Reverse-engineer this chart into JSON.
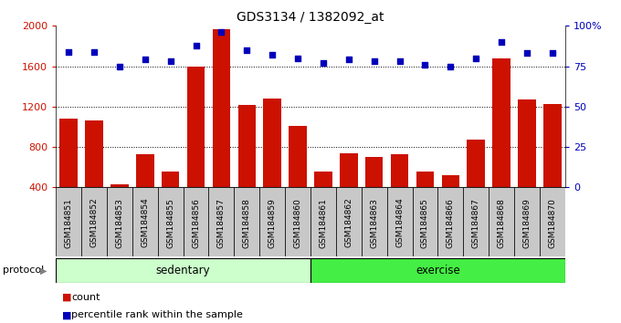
{
  "title": "GDS3134 / 1382092_at",
  "samples": [
    "GSM184851",
    "GSM184852",
    "GSM184853",
    "GSM184854",
    "GSM184855",
    "GSM184856",
    "GSM184857",
    "GSM184858",
    "GSM184859",
    "GSM184860",
    "GSM184861",
    "GSM184862",
    "GSM184863",
    "GSM184864",
    "GSM184865",
    "GSM184866",
    "GSM184867",
    "GSM184868",
    "GSM184869",
    "GSM184870"
  ],
  "counts": [
    1080,
    1060,
    430,
    730,
    560,
    1600,
    1970,
    1220,
    1280,
    1010,
    560,
    740,
    700,
    730,
    560,
    520,
    870,
    1680,
    1270,
    1230
  ],
  "percentiles": [
    84,
    84,
    75,
    79,
    78,
    88,
    96,
    85,
    82,
    80,
    77,
    79,
    78,
    78,
    76,
    75,
    80,
    90,
    83,
    83
  ],
  "bar_color": "#cc1100",
  "dot_color": "#0000bb",
  "sedentary_count": 10,
  "exercise_count": 10,
  "sedentary_color": "#ccffcc",
  "exercise_color": "#44ee44",
  "left_ylim": [
    400,
    2000
  ],
  "left_yticks": [
    400,
    800,
    1200,
    1600,
    2000
  ],
  "right_ylim": [
    0,
    100
  ],
  "right_yticks": [
    0,
    25,
    50,
    75,
    100
  ],
  "right_yticklabels": [
    "0",
    "25",
    "50",
    "75",
    "100%"
  ],
  "grid_values": [
    800,
    1200,
    1600
  ],
  "legend_items": [
    "count",
    "percentile rank within the sample"
  ],
  "protocol_label": "protocol",
  "sedentary_label": "sedentary",
  "exercise_label": "exercise"
}
